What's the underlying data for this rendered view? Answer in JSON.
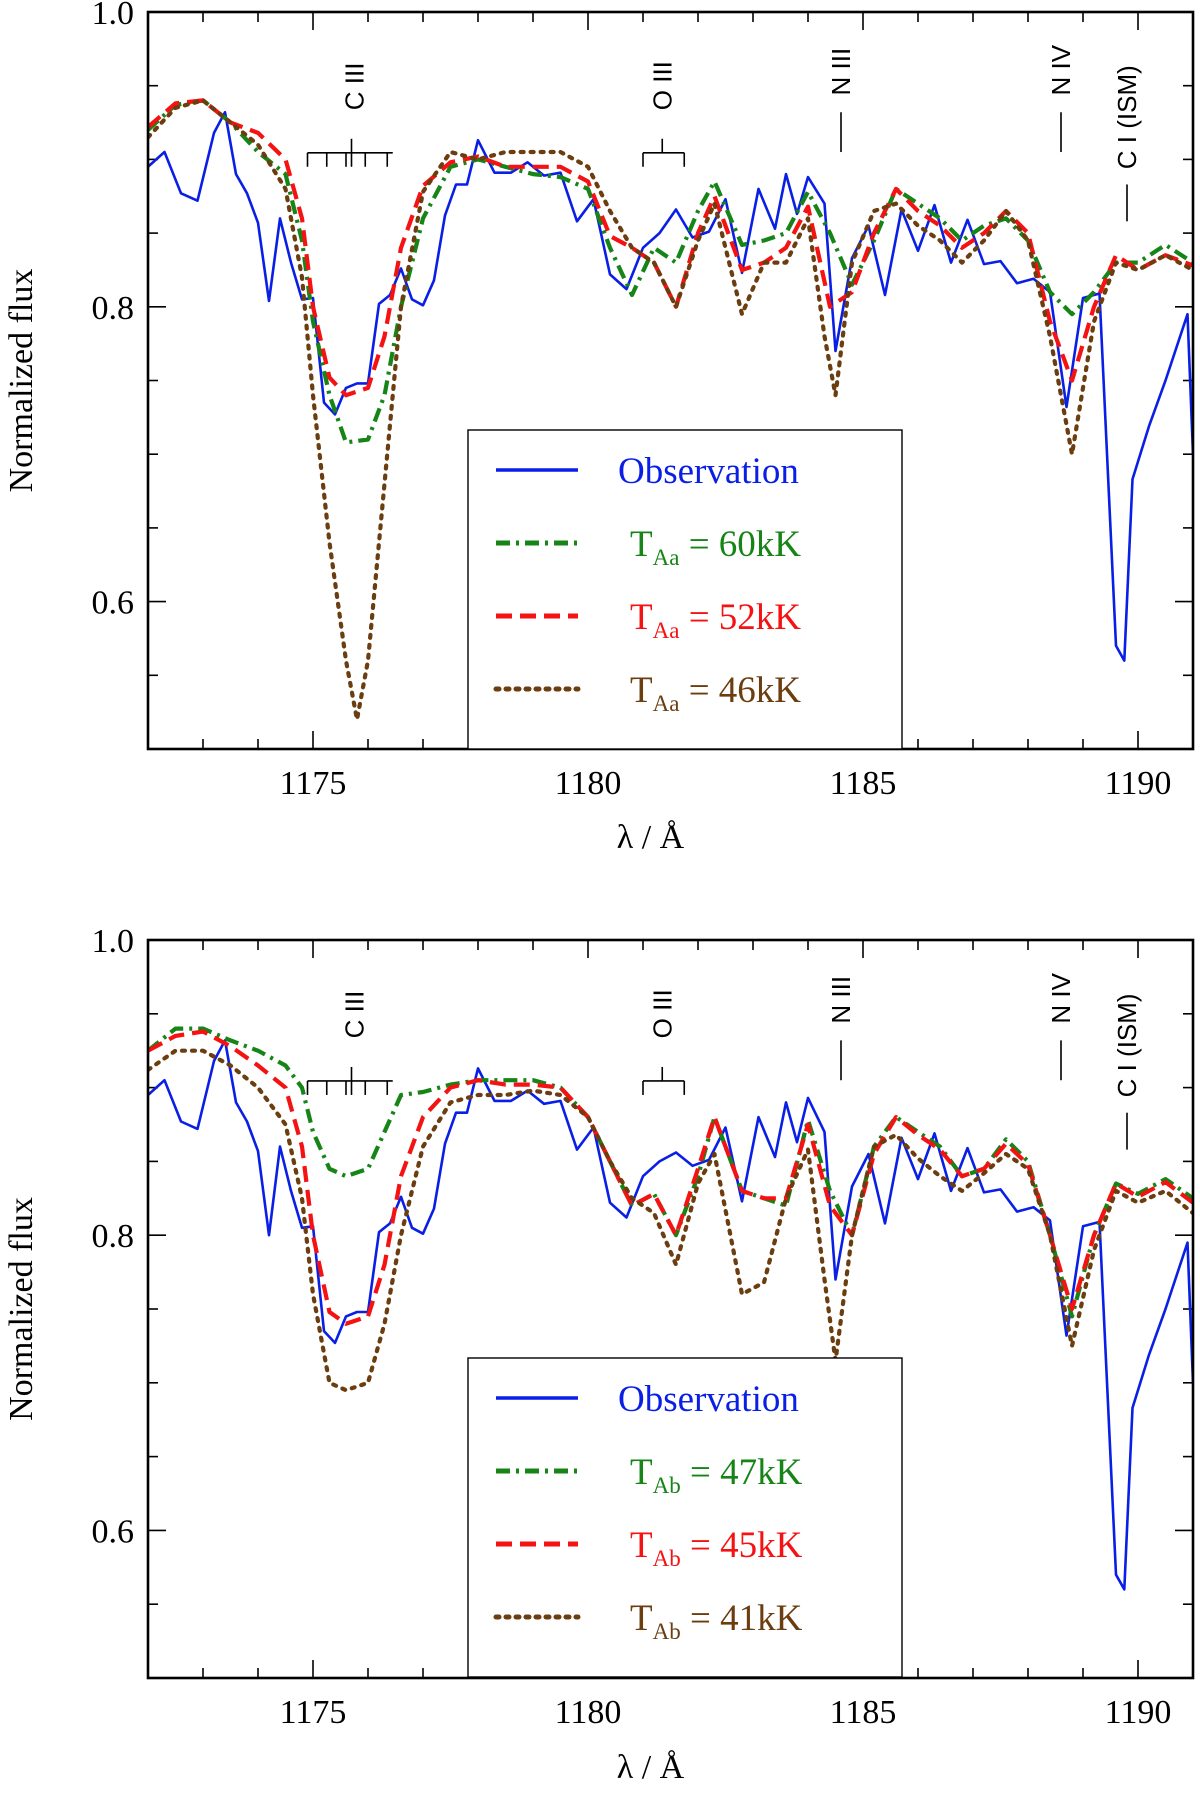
{
  "colors": {
    "observation": "#0a1fe6",
    "model1": "#168416",
    "model2": "#f51212",
    "model3": "#6b3d0f"
  },
  "axis_labels": {
    "xlabel": "λ / Å",
    "ylabel": "Normalized flux"
  },
  "line_ids": [
    "C III",
    "O III",
    "N III",
    "N IV",
    "C I (ISM)"
  ],
  "legend": {
    "observation": "Observation"
  },
  "chart_data": [
    {
      "type": "line",
      "xlabel": "λ / Å",
      "ylabel": "Normalized flux",
      "xlim": [
        1172.0,
        1191.0
      ],
      "ylim": [
        0.5,
        1.0
      ],
      "xticks": [
        1175,
        1180,
        1185,
        1190
      ],
      "yticks": [
        0.6,
        0.8,
        1.0
      ],
      "line_ids": [
        "C III",
        "O III",
        "N III",
        "N IV",
        "C I (ISM)"
      ],
      "legend_position": "bottom-center",
      "series": [
        {
          "name": "Observation",
          "style": "solid",
          "x": [
            1172.0,
            1172.3,
            1172.6,
            1172.9,
            1173.2,
            1173.4,
            1173.6,
            1173.8,
            1174.0,
            1174.2,
            1174.4,
            1174.6,
            1174.8,
            1175.0,
            1175.2,
            1175.4,
            1175.6,
            1175.8,
            1176.0,
            1176.2,
            1176.4,
            1176.6,
            1176.8,
            1177.0,
            1177.2,
            1177.4,
            1177.6,
            1177.8,
            1178.0,
            1178.3,
            1178.6,
            1178.9,
            1179.2,
            1179.5,
            1179.8,
            1180.1,
            1180.4,
            1180.7,
            1181.0,
            1181.3,
            1181.6,
            1181.9,
            1182.2,
            1182.5,
            1182.8,
            1183.1,
            1183.4,
            1183.6,
            1183.8,
            1184.0,
            1184.3,
            1184.5,
            1184.8,
            1185.1,
            1185.4,
            1185.7,
            1186.0,
            1186.3,
            1186.6,
            1186.9,
            1187.2,
            1187.5,
            1187.8,
            1188.1,
            1188.4,
            1188.7,
            1189.0,
            1189.3,
            1189.6,
            1189.75,
            1189.9,
            1190.2,
            1190.5,
            1190.9,
            1191.0
          ],
          "y": [
            0.895,
            0.905,
            0.877,
            0.872,
            0.918,
            0.932,
            0.89,
            0.877,
            0.857,
            0.804,
            0.86,
            0.83,
            0.805,
            0.806,
            0.735,
            0.727,
            0.745,
            0.748,
            0.748,
            0.802,
            0.808,
            0.826,
            0.805,
            0.801,
            0.818,
            0.862,
            0.883,
            0.883,
            0.913,
            0.891,
            0.891,
            0.898,
            0.889,
            0.891,
            0.858,
            0.873,
            0.822,
            0.812,
            0.84,
            0.85,
            0.866,
            0.847,
            0.851,
            0.873,
            0.823,
            0.88,
            0.853,
            0.89,
            0.863,
            0.888,
            0.87,
            0.77,
            0.833,
            0.855,
            0.808,
            0.866,
            0.838,
            0.869,
            0.83,
            0.859,
            0.829,
            0.831,
            0.816,
            0.819,
            0.81,
            0.732,
            0.806,
            0.809,
            0.57,
            0.56,
            0.683,
            0.719,
            0.75,
            0.795,
            0.7
          ]
        },
        {
          "name": "T_Aa = 60kK",
          "name_main": "T",
          "name_sub": "Aa",
          "name_rest": " = 60kK",
          "style": "dashdot",
          "x": [
            1172.0,
            1172.5,
            1173.0,
            1173.5,
            1174.0,
            1174.5,
            1174.8,
            1175.0,
            1175.3,
            1175.6,
            1176.0,
            1176.3,
            1176.6,
            1177.0,
            1177.5,
            1178.0,
            1178.5,
            1179.0,
            1179.5,
            1180.0,
            1180.4,
            1180.8,
            1181.2,
            1181.6,
            1182.0,
            1182.3,
            1182.8,
            1183.2,
            1183.6,
            1184.0,
            1184.4,
            1184.8,
            1185.2,
            1185.6,
            1186.0,
            1186.4,
            1186.8,
            1187.2,
            1187.6,
            1188.0,
            1188.4,
            1188.8,
            1189.2,
            1189.6,
            1190.0,
            1190.5,
            1191.0
          ],
          "y": [
            0.92,
            0.937,
            0.94,
            0.925,
            0.905,
            0.89,
            0.845,
            0.79,
            0.74,
            0.708,
            0.71,
            0.74,
            0.8,
            0.86,
            0.895,
            0.9,
            0.895,
            0.89,
            0.888,
            0.88,
            0.84,
            0.808,
            0.84,
            0.83,
            0.865,
            0.885,
            0.842,
            0.845,
            0.85,
            0.878,
            0.85,
            0.815,
            0.845,
            0.88,
            0.87,
            0.86,
            0.845,
            0.855,
            0.86,
            0.845,
            0.81,
            0.795,
            0.81,
            0.83,
            0.83,
            0.842,
            0.83
          ]
        },
        {
          "name": "T_Aa = 52kK",
          "name_main": "T",
          "name_sub": "Aa",
          "name_rest": " = 52kK",
          "style": "dashed",
          "x": [
            1172.0,
            1172.5,
            1173.0,
            1173.5,
            1174.0,
            1174.5,
            1174.8,
            1175.0,
            1175.3,
            1175.6,
            1176.0,
            1176.3,
            1176.6,
            1177.0,
            1177.5,
            1178.0,
            1178.5,
            1179.0,
            1179.5,
            1180.0,
            1180.4,
            1180.8,
            1181.2,
            1181.6,
            1182.0,
            1182.3,
            1182.8,
            1183.2,
            1183.6,
            1184.0,
            1184.4,
            1184.8,
            1185.2,
            1185.6,
            1186.0,
            1186.4,
            1186.8,
            1187.2,
            1187.6,
            1188.0,
            1188.4,
            1188.8,
            1189.2,
            1189.6,
            1190.0,
            1190.5,
            1191.0
          ],
          "y": [
            0.922,
            0.938,
            0.94,
            0.925,
            0.918,
            0.9,
            0.86,
            0.8,
            0.752,
            0.74,
            0.745,
            0.78,
            0.84,
            0.882,
            0.898,
            0.902,
            0.895,
            0.895,
            0.895,
            0.885,
            0.848,
            0.84,
            0.83,
            0.8,
            0.85,
            0.875,
            0.825,
            0.83,
            0.84,
            0.868,
            0.8,
            0.81,
            0.85,
            0.88,
            0.865,
            0.855,
            0.84,
            0.85,
            0.865,
            0.85,
            0.79,
            0.75,
            0.8,
            0.835,
            0.825,
            0.835,
            0.828
          ]
        },
        {
          "name": "T_Aa = 46kK",
          "name_main": "T",
          "name_sub": "Aa",
          "name_rest": " = 46kK",
          "style": "dotted",
          "x": [
            1172.0,
            1172.5,
            1173.0,
            1173.5,
            1174.0,
            1174.5,
            1174.8,
            1175.0,
            1175.3,
            1175.6,
            1175.8,
            1176.0,
            1176.3,
            1176.6,
            1177.0,
            1177.5,
            1178.0,
            1178.5,
            1179.0,
            1179.5,
            1180.0,
            1180.4,
            1180.8,
            1181.2,
            1181.6,
            1182.0,
            1182.3,
            1182.8,
            1183.2,
            1183.6,
            1184.0,
            1184.3,
            1184.5,
            1184.8,
            1185.2,
            1185.6,
            1186.0,
            1186.4,
            1186.8,
            1187.2,
            1187.6,
            1188.0,
            1188.4,
            1188.8,
            1189.2,
            1189.6,
            1190.0,
            1190.5,
            1191.0
          ],
          "y": [
            0.915,
            0.935,
            0.94,
            0.925,
            0.91,
            0.88,
            0.82,
            0.74,
            0.64,
            0.56,
            0.52,
            0.56,
            0.68,
            0.8,
            0.878,
            0.905,
            0.9,
            0.905,
            0.905,
            0.905,
            0.895,
            0.865,
            0.84,
            0.83,
            0.8,
            0.845,
            0.87,
            0.795,
            0.83,
            0.83,
            0.86,
            0.78,
            0.74,
            0.83,
            0.865,
            0.87,
            0.855,
            0.845,
            0.83,
            0.845,
            0.865,
            0.845,
            0.78,
            0.7,
            0.79,
            0.83,
            0.825,
            0.835,
            0.825
          ]
        }
      ]
    },
    {
      "type": "line",
      "xlabel": "λ / Å",
      "ylabel": "Normalized flux",
      "xlim": [
        1172.0,
        1191.0
      ],
      "ylim": [
        0.5,
        1.0
      ],
      "xticks": [
        1175,
        1180,
        1185,
        1190
      ],
      "yticks": [
        0.6,
        0.8,
        1.0
      ],
      "line_ids": [
        "C III",
        "O III",
        "N III",
        "N IV",
        "C I (ISM)"
      ],
      "legend_position": "bottom-center",
      "series": [
        {
          "name": "Observation",
          "style": "solid",
          "x": [
            1172.0,
            1172.3,
            1172.6,
            1172.9,
            1173.2,
            1173.4,
            1173.6,
            1173.8,
            1174.0,
            1174.2,
            1174.4,
            1174.6,
            1174.8,
            1175.0,
            1175.2,
            1175.4,
            1175.6,
            1175.8,
            1176.0,
            1176.2,
            1176.4,
            1176.6,
            1176.8,
            1177.0,
            1177.2,
            1177.4,
            1177.6,
            1177.8,
            1178.0,
            1178.3,
            1178.6,
            1178.9,
            1179.2,
            1179.5,
            1179.8,
            1180.1,
            1180.4,
            1180.7,
            1181.0,
            1181.3,
            1181.6,
            1181.9,
            1182.2,
            1182.5,
            1182.8,
            1183.1,
            1183.4,
            1183.6,
            1183.8,
            1184.0,
            1184.3,
            1184.5,
            1184.8,
            1185.1,
            1185.4,
            1185.7,
            1186.0,
            1186.3,
            1186.6,
            1186.9,
            1187.2,
            1187.5,
            1187.8,
            1188.1,
            1188.4,
            1188.7,
            1189.0,
            1189.3,
            1189.6,
            1189.75,
            1189.9,
            1190.2,
            1190.5,
            1190.9,
            1191.0
          ],
          "y": [
            0.895,
            0.905,
            0.877,
            0.872,
            0.918,
            0.932,
            0.89,
            0.877,
            0.857,
            0.8,
            0.86,
            0.83,
            0.805,
            0.806,
            0.735,
            0.727,
            0.745,
            0.748,
            0.748,
            0.802,
            0.808,
            0.826,
            0.805,
            0.801,
            0.818,
            0.862,
            0.883,
            0.883,
            0.913,
            0.891,
            0.891,
            0.898,
            0.889,
            0.891,
            0.858,
            0.873,
            0.822,
            0.812,
            0.84,
            0.85,
            0.856,
            0.847,
            0.851,
            0.873,
            0.823,
            0.88,
            0.853,
            0.89,
            0.863,
            0.893,
            0.87,
            0.77,
            0.833,
            0.855,
            0.808,
            0.866,
            0.838,
            0.869,
            0.83,
            0.859,
            0.829,
            0.831,
            0.816,
            0.819,
            0.81,
            0.732,
            0.806,
            0.809,
            0.57,
            0.56,
            0.683,
            0.719,
            0.75,
            0.795,
            0.7
          ]
        },
        {
          "name": "T_Ab = 47kK",
          "name_main": "T",
          "name_sub": "Ab",
          "name_rest": " = 47kK",
          "style": "dashdot",
          "x": [
            1172.0,
            1172.5,
            1173.0,
            1173.5,
            1174.0,
            1174.5,
            1174.8,
            1175.0,
            1175.3,
            1175.6,
            1176.0,
            1176.3,
            1176.6,
            1177.0,
            1177.5,
            1178.0,
            1178.5,
            1179.0,
            1179.5,
            1180.0,
            1180.4,
            1180.8,
            1181.2,
            1181.6,
            1182.0,
            1182.3,
            1182.8,
            1183.2,
            1183.6,
            1184.0,
            1184.4,
            1184.8,
            1185.2,
            1185.6,
            1186.0,
            1186.4,
            1186.8,
            1187.2,
            1187.6,
            1188.0,
            1188.4,
            1188.8,
            1189.2,
            1189.6,
            1190.0,
            1190.5,
            1191.0
          ],
          "y": [
            0.925,
            0.94,
            0.94,
            0.932,
            0.925,
            0.915,
            0.9,
            0.87,
            0.845,
            0.84,
            0.845,
            0.87,
            0.895,
            0.897,
            0.902,
            0.905,
            0.905,
            0.905,
            0.9,
            0.88,
            0.85,
            0.82,
            0.828,
            0.8,
            0.84,
            0.88,
            0.83,
            0.825,
            0.82,
            0.878,
            0.83,
            0.8,
            0.86,
            0.88,
            0.87,
            0.86,
            0.84,
            0.845,
            0.865,
            0.85,
            0.8,
            0.745,
            0.8,
            0.835,
            0.828,
            0.838,
            0.825
          ]
        },
        {
          "name": "T_Ab = 45kK",
          "name_main": "T",
          "name_sub": "Ab",
          "name_rest": " = 45kK",
          "style": "dashed",
          "x": [
            1172.0,
            1172.5,
            1173.0,
            1173.5,
            1174.0,
            1174.5,
            1174.8,
            1175.0,
            1175.3,
            1175.6,
            1176.0,
            1176.3,
            1176.6,
            1177.0,
            1177.5,
            1178.0,
            1178.5,
            1179.0,
            1179.5,
            1180.0,
            1180.4,
            1180.8,
            1181.2,
            1181.6,
            1182.0,
            1182.3,
            1182.8,
            1183.2,
            1183.6,
            1184.0,
            1184.4,
            1184.8,
            1185.2,
            1185.6,
            1186.0,
            1186.4,
            1186.8,
            1187.2,
            1187.6,
            1188.0,
            1188.4,
            1188.8,
            1189.2,
            1189.6,
            1190.0,
            1190.5,
            1191.0
          ],
          "y": [
            0.925,
            0.935,
            0.938,
            0.928,
            0.915,
            0.9,
            0.86,
            0.8,
            0.748,
            0.74,
            0.745,
            0.78,
            0.84,
            0.88,
            0.9,
            0.905,
            0.902,
            0.902,
            0.9,
            0.88,
            0.85,
            0.82,
            0.828,
            0.8,
            0.845,
            0.88,
            0.83,
            0.825,
            0.825,
            0.875,
            0.82,
            0.8,
            0.855,
            0.88,
            0.868,
            0.858,
            0.84,
            0.845,
            0.862,
            0.848,
            0.8,
            0.75,
            0.8,
            0.835,
            0.826,
            0.836,
            0.822
          ]
        },
        {
          "name": "T_Ab = 41kK",
          "name_main": "T",
          "name_sub": "Ab",
          "name_rest": " = 41kK",
          "style": "dotted",
          "x": [
            1172.0,
            1172.5,
            1173.0,
            1173.5,
            1174.0,
            1174.5,
            1174.8,
            1175.0,
            1175.3,
            1175.6,
            1176.0,
            1176.3,
            1176.6,
            1177.0,
            1177.5,
            1178.0,
            1178.5,
            1179.0,
            1179.5,
            1180.0,
            1180.4,
            1180.8,
            1181.2,
            1181.6,
            1182.0,
            1182.3,
            1182.8,
            1183.2,
            1183.6,
            1184.0,
            1184.3,
            1184.5,
            1184.8,
            1185.2,
            1185.6,
            1186.0,
            1186.4,
            1186.8,
            1187.2,
            1187.6,
            1188.0,
            1188.4,
            1188.8,
            1189.2,
            1189.6,
            1190.0,
            1190.5,
            1191.0
          ],
          "y": [
            0.912,
            0.925,
            0.925,
            0.915,
            0.9,
            0.875,
            0.825,
            0.76,
            0.7,
            0.695,
            0.7,
            0.74,
            0.8,
            0.86,
            0.89,
            0.895,
            0.895,
            0.898,
            0.895,
            0.88,
            0.85,
            0.825,
            0.815,
            0.78,
            0.835,
            0.855,
            0.76,
            0.768,
            0.825,
            0.858,
            0.77,
            0.715,
            0.8,
            0.86,
            0.868,
            0.852,
            0.84,
            0.83,
            0.842,
            0.855,
            0.845,
            0.8,
            0.725,
            0.79,
            0.83,
            0.822,
            0.83,
            0.815
          ]
        }
      ]
    }
  ]
}
